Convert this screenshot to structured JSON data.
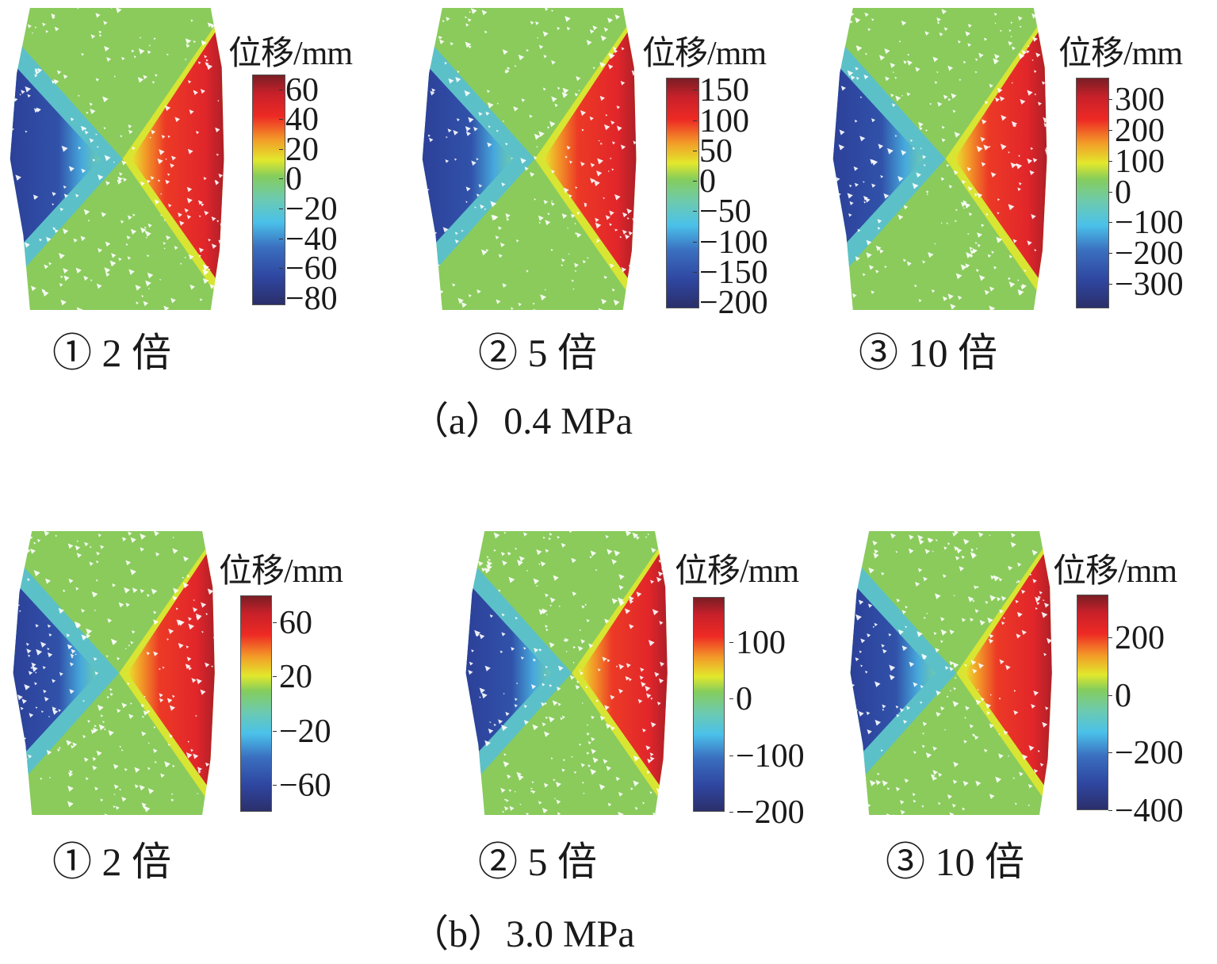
{
  "figure": {
    "panels": [
      {
        "id": "a",
        "caption": "（a）0.4 MPa",
        "subplots": [
          {
            "label": "① 2 倍",
            "colorbar_title": "位移/mm",
            "ticks": [
              "60",
              "40",
              "20",
              "0",
              "−20",
              "−40",
              "−60",
              "−80"
            ],
            "range": [
              -85,
              70
            ]
          },
          {
            "label": "② 5 倍",
            "colorbar_title": "位移/mm",
            "ticks": [
              "150",
              "100",
              "50",
              "0",
              "−50",
              "−100",
              "−150",
              "−200"
            ],
            "range": [
              -210,
              170
            ]
          },
          {
            "label": "③ 10 倍",
            "colorbar_title": "位移/mm",
            "ticks": [
              "300",
              "200",
              "100",
              "0",
              "−100",
              "−200",
              "−300"
            ],
            "range": [
              -380,
              370
            ]
          }
        ]
      },
      {
        "id": "b",
        "caption": "（b）3.0 MPa",
        "subplots": [
          {
            "label": "① 2 倍",
            "colorbar_title": "位移/mm",
            "ticks": [
              "60",
              "20",
              "−20",
              "−60"
            ],
            "range": [
              -80,
              80
            ]
          },
          {
            "label": "② 5 倍",
            "colorbar_title": "位移/mm",
            "ticks": [
              "100",
              "0",
              "−100",
              "−200"
            ],
            "range": [
              -200,
              180
            ]
          },
          {
            "label": "③ 10 倍",
            "colorbar_title": "位移/mm",
            "ticks": [
              "200",
              "0",
              "−200",
              "−400"
            ],
            "range": [
              -400,
              350
            ]
          }
        ]
      }
    ]
  },
  "chart_data": {
    "type": "heatmap",
    "title": "",
    "colormap": [
      "#2b2f6b",
      "#2f46a0",
      "#4bc1ea",
      "#85cd5c",
      "#e2e82c",
      "#f39a28",
      "#ee2a24",
      "#7a1e24"
    ],
    "colorbar_label": "位移/mm",
    "panels": [
      {
        "pressure": "0.4 MPa",
        "cases": [
          {
            "label": "① 2 倍",
            "colorbar_ticks": [
              60,
              40,
              20,
              0,
              -20,
              -40,
              -60,
              -80
            ]
          },
          {
            "label": "② 5 倍",
            "colorbar_ticks": [
              150,
              100,
              50,
              0,
              -50,
              -100,
              -150,
              -200
            ]
          },
          {
            "label": "③ 10 倍",
            "colorbar_ticks": [
              300,
              200,
              100,
              0,
              -100,
              -200,
              -300
            ]
          }
        ]
      },
      {
        "pressure": "3.0 MPa",
        "cases": [
          {
            "label": "① 2 倍",
            "colorbar_ticks": [
              60,
              20,
              -20,
              -60
            ]
          },
          {
            "label": "② 5 倍",
            "colorbar_ticks": [
              100,
              0,
              -100,
              -200
            ]
          },
          {
            "label": "③ 10 倍",
            "colorbar_ticks": [
              200,
              0,
              -200,
              -400
            ]
          }
        ]
      }
    ]
  }
}
